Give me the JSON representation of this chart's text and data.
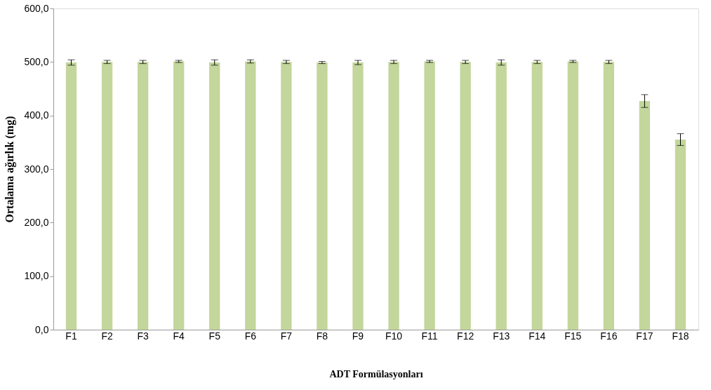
{
  "chart_data": {
    "type": "bar",
    "xlabel": "ADT Formülasyonları",
    "ylabel": "Ortalama ağırlık (mg)",
    "categories": [
      "F1",
      "F2",
      "F3",
      "F4",
      "F5",
      "F6",
      "F7",
      "F8",
      "F9",
      "F10",
      "F11",
      "F12",
      "F13",
      "F14",
      "F15",
      "F16",
      "F17",
      "F18"
    ],
    "values": [
      499,
      500,
      500,
      501,
      499,
      501,
      500,
      499,
      499,
      500,
      501,
      500,
      499,
      500,
      501,
      500,
      427,
      355
    ],
    "errors": [
      5,
      3,
      3,
      2,
      5,
      3,
      3,
      2,
      4,
      3,
      2,
      3,
      5,
      3,
      2,
      3,
      12,
      11
    ],
    "color": "#c3d69b",
    "ylim": [
      0,
      600
    ],
    "yticks": [
      {
        "value": 0,
        "label": "0,0"
      },
      {
        "value": 100,
        "label": "100,0"
      },
      {
        "value": 200,
        "label": "200,0"
      },
      {
        "value": 300,
        "label": "300,0"
      },
      {
        "value": 400,
        "label": "400,0"
      },
      {
        "value": 500,
        "label": "500,0"
      },
      {
        "value": 600,
        "label": "600,0"
      }
    ],
    "grid": false
  }
}
